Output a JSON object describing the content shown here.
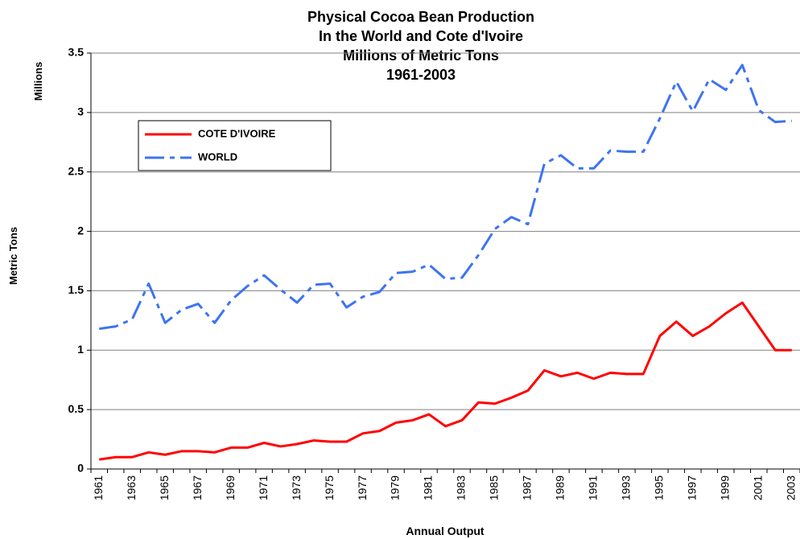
{
  "chart_data": {
    "type": "line",
    "title": [
      "Physical Cocoa Bean Production",
      "In the World and Cote d'Ivoire",
      "Millions of Metric Tons",
      "1961-2003"
    ],
    "y_unit_label": "Millions",
    "ylabel": "Metric Tons",
    "xlabel": "Annual Output",
    "categories": [
      "1961",
      null,
      "1963",
      null,
      "1965",
      null,
      "1967",
      null,
      "1969",
      null,
      "1971",
      null,
      "1973",
      null,
      "1975",
      null,
      "1977",
      null,
      "1979",
      null,
      "1981",
      null,
      "1983",
      null,
      "1985",
      null,
      "1987",
      null,
      "1989",
      null,
      "1991",
      null,
      "1993",
      null,
      "1995",
      null,
      "1997",
      null,
      "1999",
      null,
      "2001",
      null,
      "2003"
    ],
    "series": [
      {
        "name": "COTE D'IVOIRE",
        "color": "#ff0000",
        "dashed": false,
        "values": [
          0.08,
          0.1,
          0.1,
          0.14,
          0.12,
          0.15,
          0.15,
          0.14,
          0.18,
          0.18,
          0.22,
          0.19,
          0.21,
          0.24,
          0.23,
          0.23,
          0.3,
          0.32,
          0.39,
          0.41,
          0.46,
          0.36,
          0.41,
          0.56,
          0.55,
          0.6,
          0.66,
          0.83,
          0.78,
          0.81,
          0.76,
          0.81,
          0.8,
          0.8,
          1.12,
          1.24,
          1.12,
          1.2,
          1.31,
          1.4,
          1.2,
          1.0,
          1.0
        ]
      },
      {
        "name": "WORLD",
        "color": "#3d74f0",
        "dashed": true,
        "values": [
          1.18,
          1.2,
          1.26,
          1.56,
          1.23,
          1.34,
          1.39,
          1.23,
          1.42,
          1.54,
          1.63,
          1.51,
          1.4,
          1.55,
          1.56,
          1.36,
          1.45,
          1.49,
          1.65,
          1.66,
          1.72,
          1.6,
          1.61,
          1.8,
          2.02,
          2.12,
          2.06,
          2.57,
          2.64,
          2.53,
          2.53,
          2.68,
          2.67,
          2.67,
          2.95,
          3.26,
          3.01,
          3.28,
          3.19,
          3.4,
          3.02,
          2.92,
          2.93
        ]
      }
    ],
    "ylim": [
      0,
      3.5
    ],
    "yticks": [
      0,
      0.5,
      1,
      1.5,
      2,
      2.5,
      3,
      3.5
    ],
    "grid": true
  }
}
